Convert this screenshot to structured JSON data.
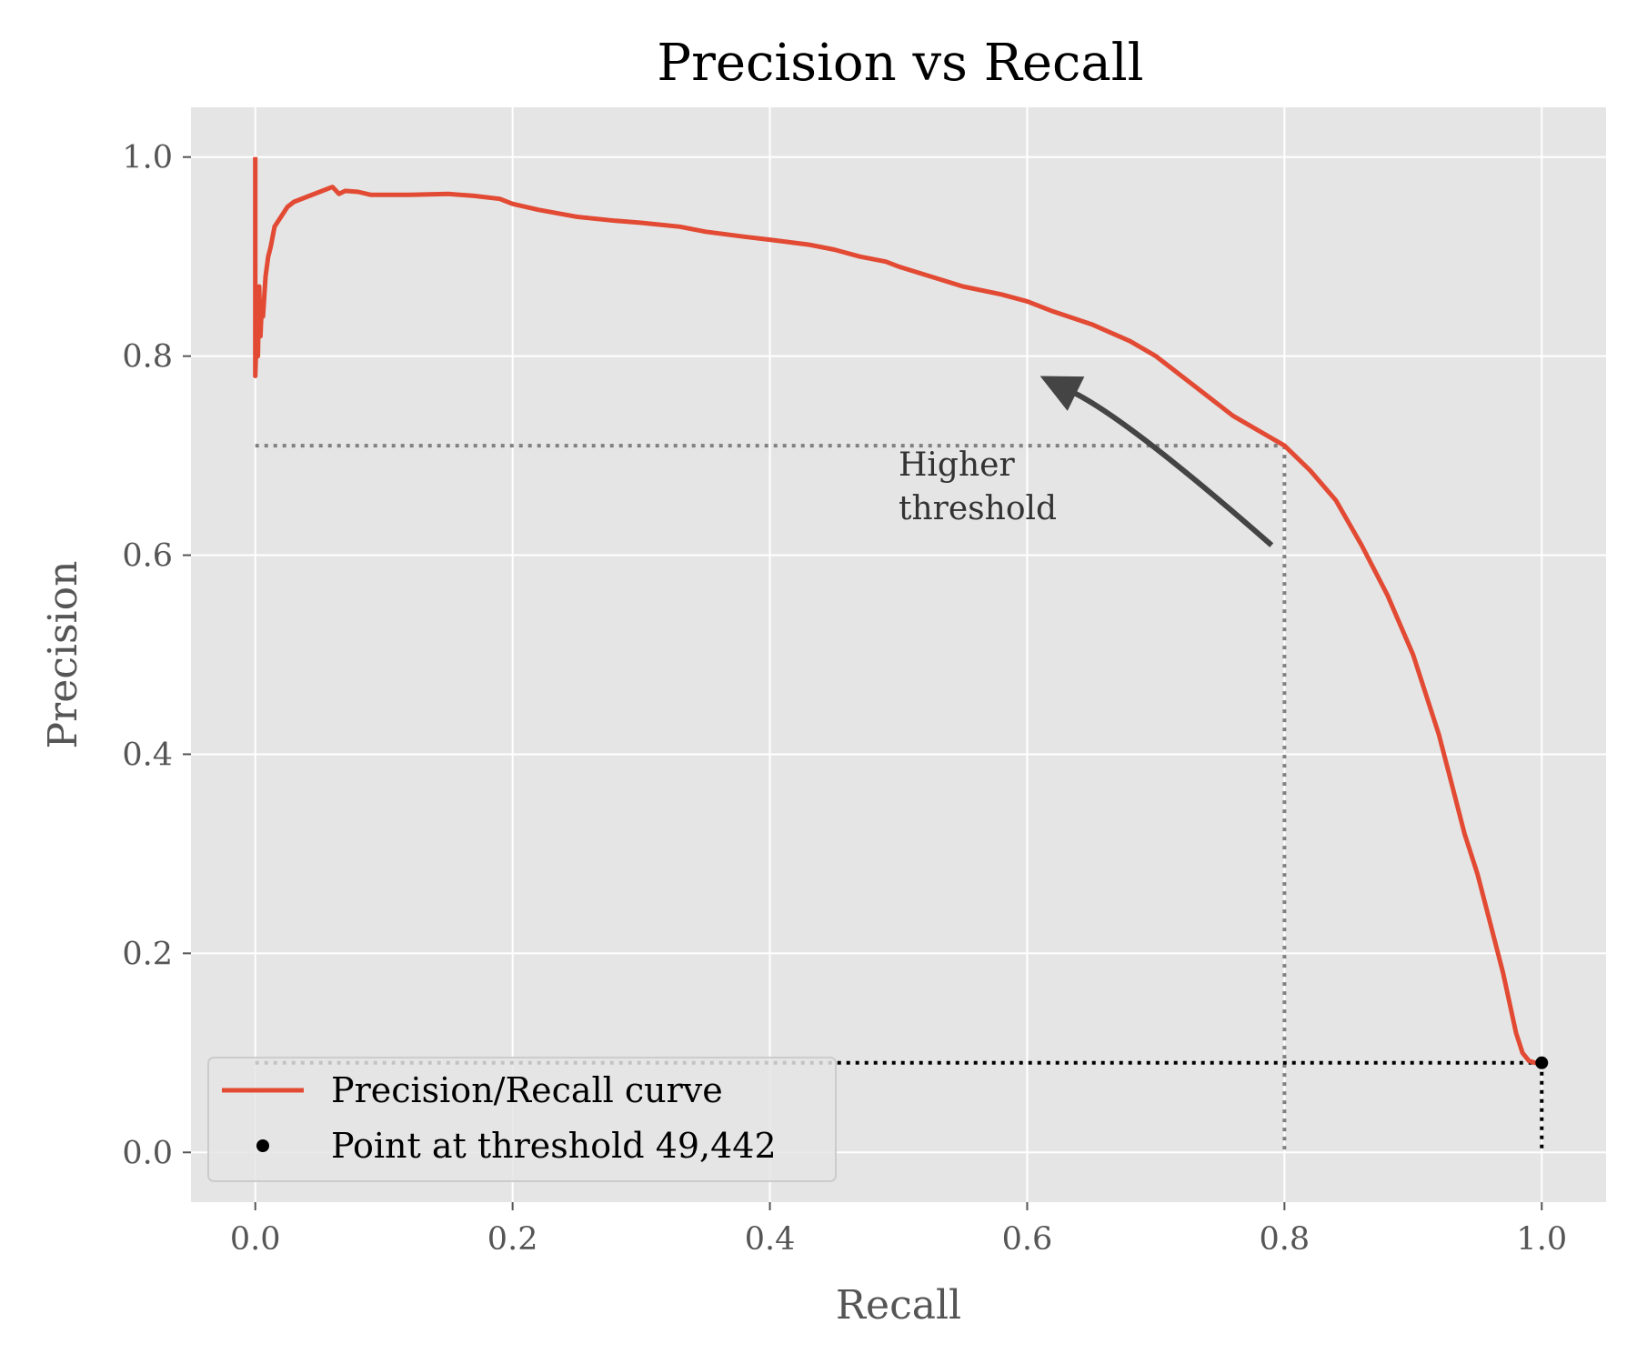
{
  "chart_data": {
    "type": "line",
    "title": "Precision vs Recall",
    "xlabel": "Recall",
    "ylabel": "Precision",
    "xlim": [
      -0.05,
      1.05
    ],
    "ylim": [
      -0.05,
      1.05
    ],
    "xticks": [
      0.0,
      0.2,
      0.4,
      0.6,
      0.8,
      1.0
    ],
    "yticks": [
      0.0,
      0.2,
      0.4,
      0.6,
      0.8,
      1.0
    ],
    "xtick_labels": [
      "0.0",
      "0.2",
      "0.4",
      "0.6",
      "0.8",
      "1.0"
    ],
    "ytick_labels": [
      "0.0",
      "0.2",
      "0.4",
      "0.6",
      "0.8",
      "1.0"
    ],
    "grid": true,
    "legend_position": "lower-left",
    "series": [
      {
        "name": "Precision/Recall curve",
        "color": "#E24A33",
        "x": [
          0.0,
          0.0,
          0.0,
          0.001,
          0.001,
          0.002,
          0.003,
          0.004,
          0.005,
          0.006,
          0.008,
          0.01,
          0.012,
          0.015,
          0.02,
          0.025,
          0.03,
          0.04,
          0.05,
          0.06,
          0.065,
          0.07,
          0.08,
          0.09,
          0.1,
          0.12,
          0.15,
          0.17,
          0.19,
          0.2,
          0.22,
          0.25,
          0.28,
          0.3,
          0.33,
          0.35,
          0.38,
          0.4,
          0.43,
          0.45,
          0.47,
          0.49,
          0.5,
          0.52,
          0.55,
          0.58,
          0.6,
          0.62,
          0.65,
          0.68,
          0.7,
          0.72,
          0.74,
          0.76,
          0.78,
          0.8,
          0.82,
          0.84,
          0.86,
          0.88,
          0.9,
          0.92,
          0.93,
          0.94,
          0.95,
          0.96,
          0.97,
          0.98,
          0.985,
          0.99,
          0.995,
          1.0
        ],
        "y": [
          1.0,
          0.9,
          0.78,
          0.82,
          0.86,
          0.8,
          0.87,
          0.82,
          0.85,
          0.84,
          0.88,
          0.9,
          0.91,
          0.93,
          0.94,
          0.95,
          0.955,
          0.96,
          0.965,
          0.97,
          0.963,
          0.966,
          0.965,
          0.962,
          0.962,
          0.962,
          0.963,
          0.961,
          0.958,
          0.953,
          0.947,
          0.94,
          0.936,
          0.934,
          0.93,
          0.925,
          0.92,
          0.917,
          0.912,
          0.907,
          0.9,
          0.895,
          0.89,
          0.882,
          0.87,
          0.862,
          0.855,
          0.845,
          0.832,
          0.815,
          0.8,
          0.78,
          0.76,
          0.74,
          0.725,
          0.71,
          0.685,
          0.655,
          0.61,
          0.56,
          0.5,
          0.42,
          0.37,
          0.32,
          0.28,
          0.23,
          0.18,
          0.12,
          0.1,
          0.092,
          0.09,
          0.09
        ]
      },
      {
        "name": "Point at threshold 49,442",
        "color": "#000000",
        "x": [
          1.0
        ],
        "y": [
          0.09
        ]
      }
    ],
    "reference_lines": [
      {
        "x": [
          0.0,
          0.8
        ],
        "y": [
          0.71,
          0.71
        ],
        "color": "#808080"
      },
      {
        "x": [
          0.8,
          0.8
        ],
        "y": [
          0.71,
          0.0
        ],
        "color": "#808080"
      },
      {
        "x": [
          0.0,
          1.0
        ],
        "y": [
          0.09,
          0.09
        ],
        "color": "#000000"
      },
      {
        "x": [
          1.0,
          1.0
        ],
        "y": [
          0.09,
          0.0
        ],
        "color": "#000000"
      }
    ],
    "annotations": [
      {
        "text_lines": [
          "Higher",
          "threshold"
        ],
        "text_x": 0.5,
        "text_y": 0.68,
        "arrow_from": [
          0.79,
          0.61
        ],
        "arrow_to": [
          0.61,
          0.78
        ]
      }
    ]
  }
}
